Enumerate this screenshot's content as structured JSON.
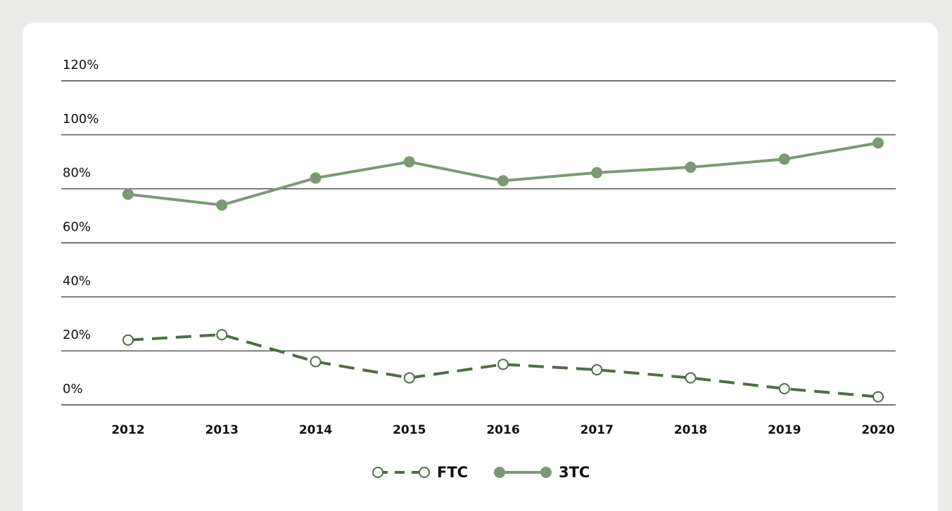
{
  "chart_data": {
    "type": "line",
    "categories": [
      "2012",
      "2013",
      "2014",
      "2015",
      "2016",
      "2017",
      "2018",
      "2019",
      "2020"
    ],
    "series": [
      {
        "name": "FTC",
        "color": "#4f6d47",
        "dashed": true,
        "marker": "open",
        "values": [
          24,
          26,
          16,
          10,
          15,
          13,
          10,
          6,
          3
        ]
      },
      {
        "name": "3TC",
        "color": "#7b9a73",
        "dashed": false,
        "marker": "filled",
        "values": [
          78,
          74,
          84,
          90,
          83,
          86,
          88,
          91,
          97
        ]
      }
    ],
    "ylim": [
      0,
      120
    ],
    "yticks": [
      {
        "value": 0,
        "label": "0%"
      },
      {
        "value": 20,
        "label": "20%"
      },
      {
        "value": 40,
        "label": "40%"
      },
      {
        "value": 60,
        "label": "60%"
      },
      {
        "value": 80,
        "label": "80%"
      },
      {
        "value": 100,
        "label": "100%"
      },
      {
        "value": 120,
        "label": "120%"
      }
    ],
    "grid": true,
    "legend": "bottom"
  }
}
